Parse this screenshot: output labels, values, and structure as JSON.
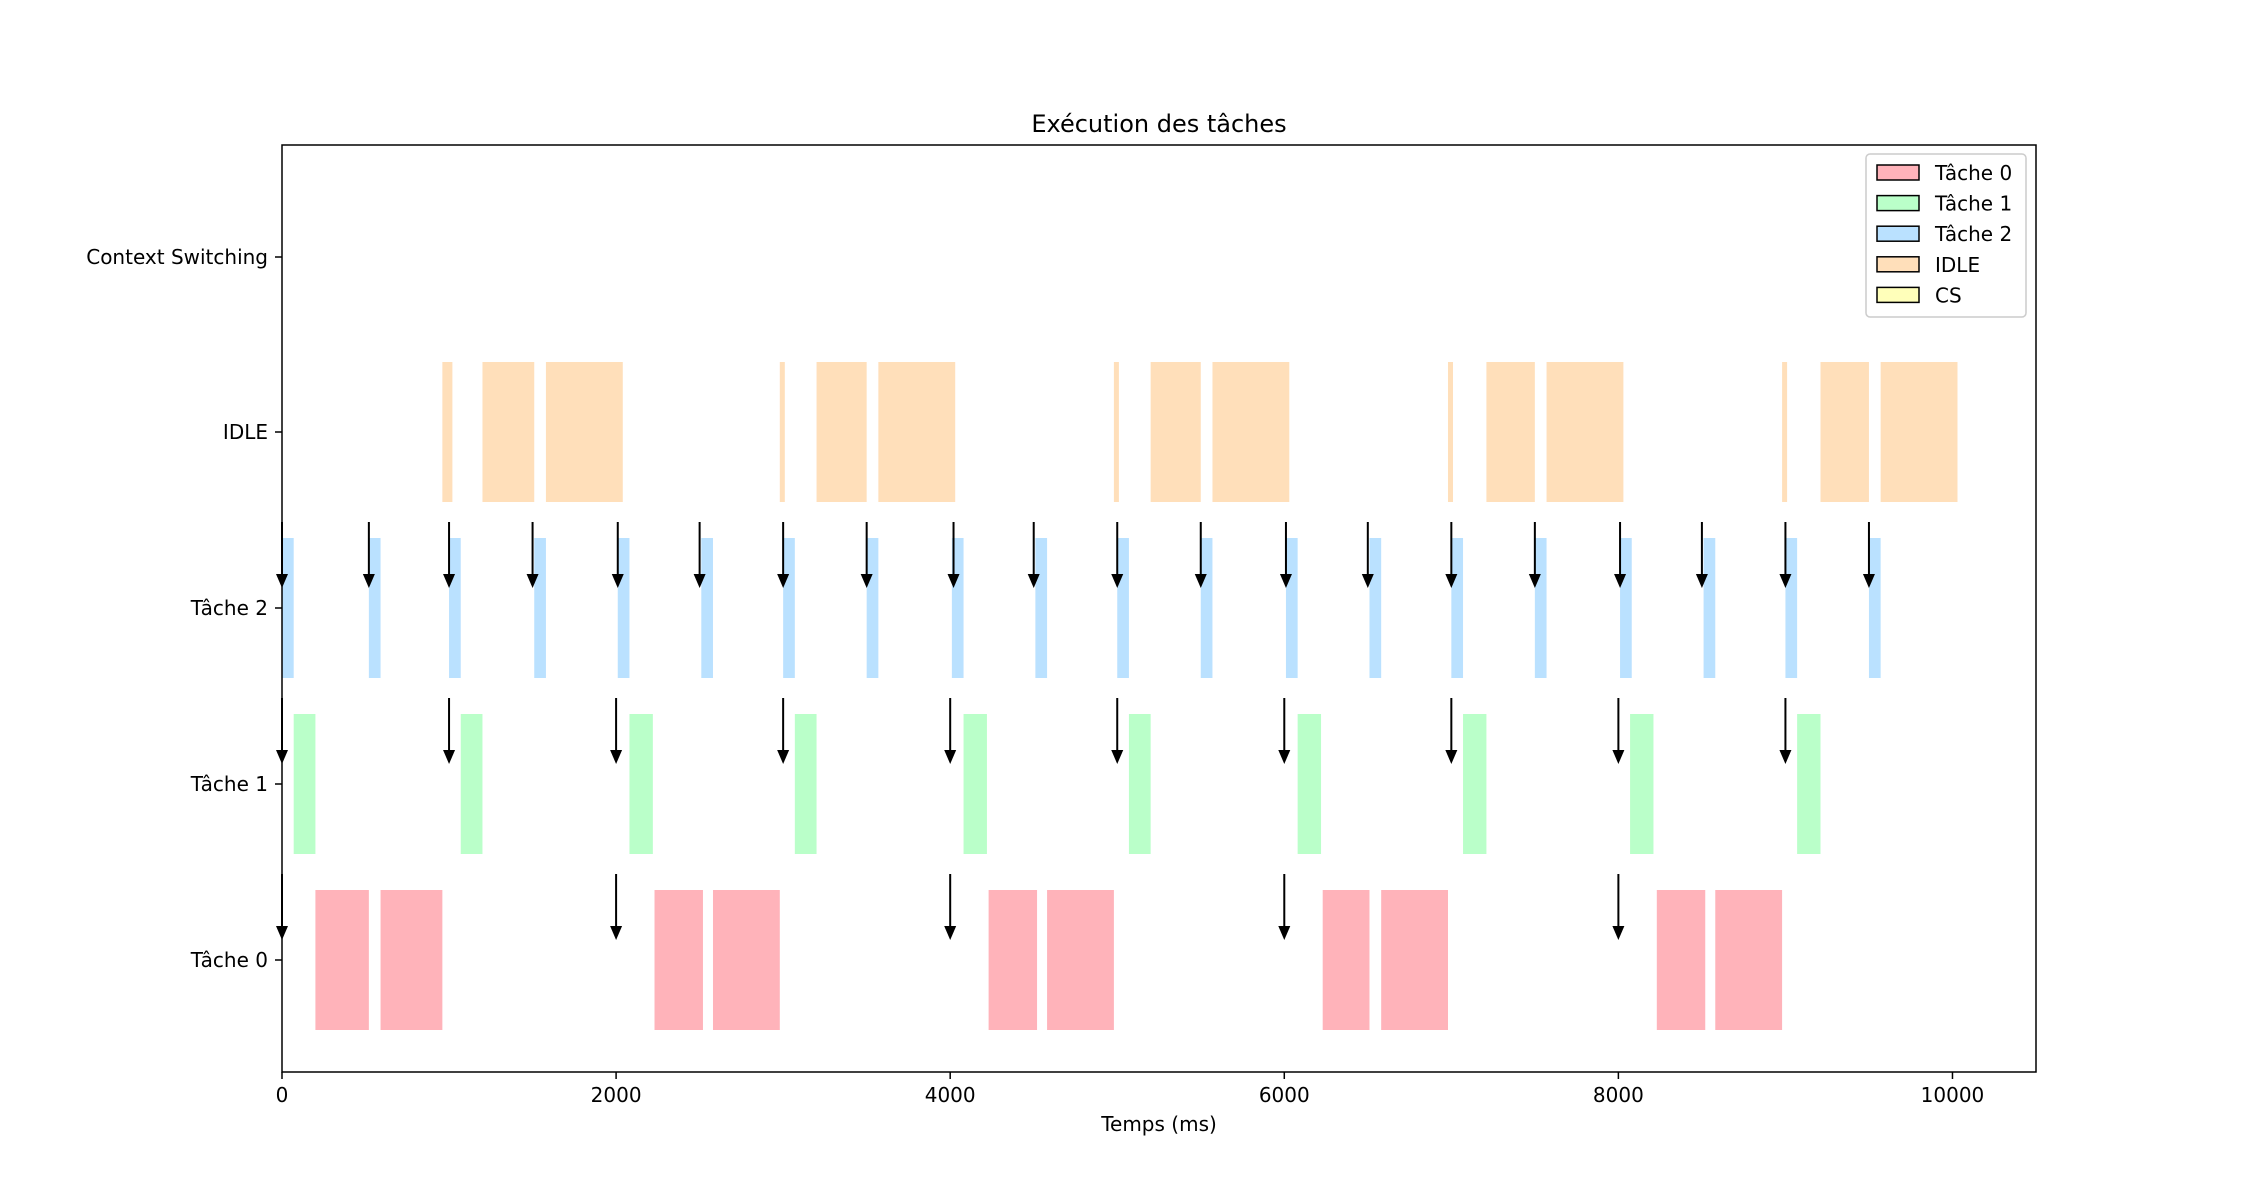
{
  "chart_data": {
    "type": "gantt",
    "title": "Exécution des tâches",
    "xlabel": "Temps (ms)",
    "ylabel": "",
    "xlim": [
      0,
      10500
    ],
    "x_ticks": [
      0,
      2000,
      4000,
      6000,
      8000,
      10000
    ],
    "x_tick_labels": [
      "0",
      "2000",
      "4000",
      "6000",
      "8000",
      "10000"
    ],
    "rows": [
      "Tâche 0",
      "Tâche 1",
      "Tâche 2",
      "IDLE",
      "Context Switching"
    ],
    "legend": {
      "position": "top-right",
      "entries": [
        {
          "label": "Tâche 0",
          "color": "#ffb3ba"
        },
        {
          "label": "Tâche 1",
          "color": "#baffc9"
        },
        {
          "label": "Tâche 2",
          "color": "#bae1ff"
        },
        {
          "label": "IDLE",
          "color": "#ffdfba"
        },
        {
          "label": "CS",
          "color": "#ffffba"
        }
      ]
    },
    "series": [
      {
        "name": "Tâche 0",
        "row": "Tâche 0",
        "color": "#ffb3ba",
        "segments": [
          [
            200,
            520
          ],
          [
            590,
            960
          ],
          [
            2230,
            2520
          ],
          [
            2580,
            2980
          ],
          [
            4230,
            4520
          ],
          [
            4580,
            4980
          ],
          [
            6230,
            6510
          ],
          [
            6580,
            6980
          ],
          [
            8230,
            8520
          ],
          [
            8580,
            8980
          ]
        ],
        "arrivals": [
          0,
          2000,
          4000,
          6000,
          8000
        ]
      },
      {
        "name": "Tâche 1",
        "row": "Tâche 1",
        "color": "#baffc9",
        "segments": [
          [
            70,
            200
          ],
          [
            1070,
            1200
          ],
          [
            2080,
            2220
          ],
          [
            3070,
            3200
          ],
          [
            4080,
            4220
          ],
          [
            5070,
            5200
          ],
          [
            6080,
            6220
          ],
          [
            7070,
            7210
          ],
          [
            8070,
            8210
          ],
          [
            9070,
            9210
          ]
        ],
        "arrivals": [
          0,
          1000,
          2000,
          3000,
          4000,
          5000,
          6000,
          7000,
          8000,
          9000
        ]
      },
      {
        "name": "Tâche 2",
        "row": "Tâche 2",
        "color": "#bae1ff",
        "segments": [
          [
            0,
            70
          ],
          [
            520,
            590
          ],
          [
            1000,
            1070
          ],
          [
            1510,
            1580
          ],
          [
            2010,
            2080
          ],
          [
            2510,
            2580
          ],
          [
            3000,
            3070
          ],
          [
            3500,
            3570
          ],
          [
            4010,
            4080
          ],
          [
            4510,
            4580
          ],
          [
            5000,
            5070
          ],
          [
            5500,
            5570
          ],
          [
            6010,
            6080
          ],
          [
            6510,
            6580
          ],
          [
            7000,
            7070
          ],
          [
            7500,
            7570
          ],
          [
            8010,
            8080
          ],
          [
            8510,
            8580
          ],
          [
            9000,
            9070
          ],
          [
            9500,
            9570
          ]
        ],
        "arrivals": [
          0,
          520,
          1000,
          1500,
          2010,
          2500,
          3000,
          3500,
          4020,
          4500,
          5000,
          5500,
          6010,
          6500,
          7000,
          7500,
          8010,
          8500,
          9000,
          9500
        ]
      },
      {
        "name": "IDLE",
        "row": "IDLE",
        "color": "#ffdfba",
        "segments": [
          [
            960,
            1020
          ],
          [
            1200,
            1510
          ],
          [
            1580,
            2040
          ],
          [
            2980,
            3010
          ],
          [
            3200,
            3500
          ],
          [
            3570,
            4030
          ],
          [
            4980,
            5010
          ],
          [
            5200,
            5500
          ],
          [
            5570,
            6030
          ],
          [
            6980,
            7010
          ],
          [
            7210,
            7500
          ],
          [
            7570,
            8030
          ],
          [
            8980,
            9010
          ],
          [
            9210,
            9500
          ],
          [
            9570,
            10030
          ]
        ],
        "arrivals": []
      },
      {
        "name": "CS",
        "row": "Context Switching",
        "color": "#ffffba",
        "segments": [],
        "arrivals": []
      }
    ]
  }
}
